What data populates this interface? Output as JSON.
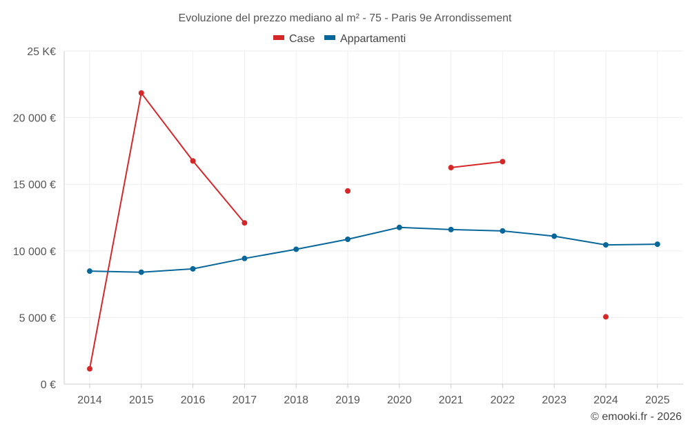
{
  "chart_data": {
    "type": "line",
    "title": "Evoluzione del prezzo mediano al m² - 75 - Paris 9e Arrondissement",
    "categories": [
      "2014",
      "2015",
      "2016",
      "2017",
      "2018",
      "2019",
      "2020",
      "2021",
      "2022",
      "2023",
      "2024",
      "2025"
    ],
    "ylim": [
      0,
      25000
    ],
    "yticks": [
      0,
      5000,
      10000,
      15000,
      20000,
      25000
    ],
    "ytick_labels": [
      "0 €",
      "5 000 €",
      "10 000 €",
      "15 000 €",
      "20 000 €",
      "25 K€"
    ],
    "series": [
      {
        "name": "Case",
        "color": "#d62728",
        "values": [
          1150,
          21850,
          16750,
          12100,
          null,
          14500,
          null,
          16250,
          16700,
          null,
          5050,
          null
        ]
      },
      {
        "name": "Appartamenti",
        "color": "#07679b",
        "values": [
          8480,
          8400,
          8650,
          9430,
          10120,
          10870,
          11760,
          11600,
          11500,
          11100,
          10450,
          10500
        ]
      }
    ],
    "grid": true,
    "legend": "top-center",
    "credit": "© emooki.fr - 2026"
  }
}
